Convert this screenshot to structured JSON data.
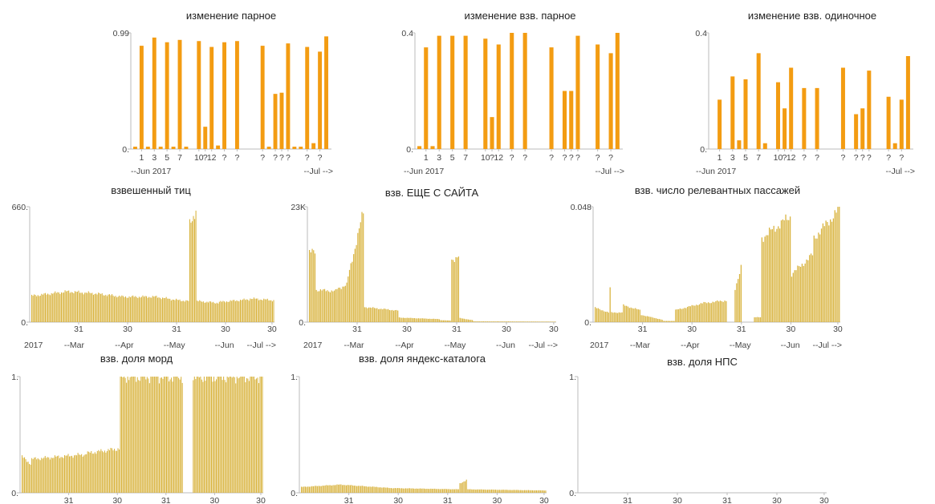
{
  "colors": {
    "orange": "#f39c12",
    "gold": "#d9b440",
    "axis": "#bbbbbb",
    "text": "#222222"
  },
  "chart_data": [
    {
      "type": "bar",
      "title": "изменение парное",
      "ylim": [
        0,
        0.99
      ],
      "ytick_labels": [
        "0.99",
        "0."
      ],
      "xtick_labels": [
        "1",
        "3",
        "5",
        "7",
        "10",
        "?",
        "12",
        "?",
        "?",
        "?",
        "?",
        "?",
        "?",
        "?",
        "?"
      ],
      "range_labels": [
        "--Jun 2017",
        "--Jul -->"
      ],
      "values": [
        0.02,
        0.88,
        0.02,
        0.95,
        0.02,
        0.91,
        0.02,
        0.93,
        0.02,
        0,
        0.92,
        0.19,
        0.87,
        0.03,
        0.91,
        0,
        0.92,
        0,
        0,
        0,
        0.88,
        0.02,
        0.47,
        0.48,
        0.9,
        0.02,
        0.02,
        0.87,
        0.05,
        0.83,
        0.96
      ]
    },
    {
      "type": "bar",
      "title": "изменение взв. парное",
      "ylim": [
        0,
        0.4
      ],
      "ytick_labels": [
        "0.4",
        "0."
      ],
      "xtick_labels": [
        "1",
        "3",
        "5",
        "7",
        "10",
        "?",
        "12",
        "?",
        "?",
        "?",
        "?",
        "?",
        "?",
        "?",
        "?"
      ],
      "range_labels": [
        "--Jun 2017",
        "--Jul -->"
      ],
      "values": [
        0.01,
        0.35,
        0.01,
        0.39,
        0,
        0.39,
        0,
        0.39,
        0,
        0,
        0.38,
        0.11,
        0.36,
        0,
        0.4,
        0,
        0.4,
        0,
        0,
        0,
        0.35,
        0,
        0.2,
        0.2,
        0.39,
        0,
        0,
        0.36,
        0,
        0.33,
        0.4
      ]
    },
    {
      "type": "bar",
      "title": "изменение взв. одиночное",
      "ylim": [
        0,
        0.4
      ],
      "ytick_labels": [
        "0.4",
        "0."
      ],
      "xtick_labels": [
        "1",
        "3",
        "5",
        "7",
        "10",
        "?",
        "12",
        "?",
        "?",
        "?",
        "?",
        "?",
        "?",
        "?",
        "?"
      ],
      "range_labels": [
        "--Jun 2017",
        "--Jul -->"
      ],
      "values": [
        0,
        0.17,
        0,
        0.25,
        0.03,
        0.24,
        0,
        0.33,
        0.02,
        0,
        0.23,
        0.14,
        0.28,
        0,
        0.21,
        0,
        0.21,
        0,
        0,
        0,
        0.28,
        0,
        0.12,
        0.14,
        0.27,
        0,
        0,
        0.18,
        0.02,
        0.17,
        0.32
      ]
    },
    {
      "type": "bar",
      "title": "взвешенный тиц",
      "ylim": [
        0,
        660
      ],
      "ytick_labels": [
        "660.",
        "0."
      ],
      "xtick_labels": [
        "31",
        "30",
        "31",
        "30",
        "30"
      ],
      "range_labels": [
        "2017",
        "--Mar",
        "--Apr",
        "--May",
        "--Jun",
        "--Jul -->"
      ],
      "segments": [
        {
          "start": 150,
          "end": 175,
          "count": 30
        },
        {
          "start": 175,
          "end": 165,
          "count": 20
        },
        {
          "start": 165,
          "end": 145,
          "count": 25
        },
        {
          "start": 145,
          "end": 145,
          "count": 25
        },
        {
          "start": 145,
          "end": 125,
          "count": 20
        },
        {
          "start": 125,
          "end": 120,
          "count": 8
        },
        {
          "start": 560,
          "end": 640,
          "count": 6
        },
        {
          "start": 120,
          "end": 110,
          "count": 18
        },
        {
          "start": 115,
          "end": 130,
          "count": 25
        },
        {
          "start": 135,
          "end": 125,
          "count": 20
        }
      ]
    },
    {
      "type": "bar",
      "title": "взв. ЕЩЕ С САЙТА",
      "ylim": [
        0,
        23000
      ],
      "ytick_labels": [
        "23K",
        "0."
      ],
      "xtick_labels": [
        "31",
        "30",
        "31",
        "30",
        "30"
      ],
      "range_labels": [
        "2017",
        "--Mar",
        "--Apr",
        "--May",
        "--Jun",
        "--Jul -->"
      ],
      "segments": [
        {
          "start": 13800,
          "end": 14200,
          "count": 5
        },
        {
          "start": 6400,
          "end": 6200,
          "count": 15
        },
        {
          "start": 6600,
          "end": 7500,
          "count": 8
        },
        {
          "start": 9000,
          "end": 22000,
          "count": 12
        },
        {
          "start": 3000,
          "end": 2300,
          "count": 25
        },
        {
          "start": 900,
          "end": 600,
          "count": 30
        },
        {
          "start": 400,
          "end": 300,
          "count": 8
        },
        {
          "start": 12500,
          "end": 13000,
          "count": 6
        },
        {
          "start": 800,
          "end": 400,
          "count": 10
        },
        {
          "start": 150,
          "end": 100,
          "count": 60
        }
      ]
    },
    {
      "type": "bar",
      "title": "взв. число релевантных пассажей",
      "ylim": [
        0,
        0.048
      ],
      "ytick_labels": [
        "0.048",
        "0."
      ],
      "xtick_labels": [
        "31",
        "30",
        "31",
        "30",
        "30"
      ],
      "range_labels": [
        "2017",
        "--Mar",
        "--Apr",
        "--May",
        "--Jun",
        "--Jul -->"
      ],
      "segments": [
        {
          "start": 0.006,
          "end": 0.004,
          "count": 10
        },
        {
          "start": 0.014,
          "end": 0.014,
          "count": 1
        },
        {
          "start": 0.004,
          "end": 0.004,
          "count": 8
        },
        {
          "start": 0.007,
          "end": 0.005,
          "count": 12
        },
        {
          "start": 0.003,
          "end": 0.001,
          "count": 15
        },
        {
          "start": 0.0005,
          "end": 0.0005,
          "count": 8
        },
        {
          "start": 0.005,
          "end": 0.008,
          "count": 20
        },
        {
          "start": 0.008,
          "end": 0.009,
          "count": 15
        },
        {
          "start": 0.0,
          "end": 0.0,
          "count": 5
        },
        {
          "start": 0.014,
          "end": 0.023,
          "count": 5
        },
        {
          "start": 0.0,
          "end": 0.0,
          "count": 8
        },
        {
          "start": 0.002,
          "end": 0.002,
          "count": 5
        },
        {
          "start": 0.035,
          "end": 0.044,
          "count": 20
        },
        {
          "start": 0.02,
          "end": 0.028,
          "count": 15
        },
        {
          "start": 0.035,
          "end": 0.047,
          "count": 18
        }
      ]
    },
    {
      "type": "bar",
      "title": "взв. доля морд",
      "ylim": [
        0,
        1
      ],
      "ytick_labels": [
        "1.",
        "0."
      ],
      "xtick_labels": [
        "31",
        "30",
        "31",
        "30",
        "30"
      ],
      "range_labels": [],
      "segments": [
        {
          "start": 0.31,
          "end": 0.25,
          "count": 8
        },
        {
          "start": 0.29,
          "end": 0.33,
          "count": 45
        },
        {
          "start": 0.34,
          "end": 0.38,
          "count": 28
        },
        {
          "start": 1,
          "end": 1,
          "count": 52
        },
        {
          "start": 0,
          "end": 0,
          "count": 8
        },
        {
          "start": 1,
          "end": 1,
          "count": 58
        }
      ]
    },
    {
      "type": "bar",
      "title": "взв. доля яндекс-каталога",
      "ylim": [
        0,
        1
      ],
      "ytick_labels": [
        "1.",
        "0."
      ],
      "xtick_labels": [
        "31",
        "30",
        "31",
        "30",
        "30"
      ],
      "range_labels": [],
      "segments": [
        {
          "start": 0.05,
          "end": 0.07,
          "count": 30
        },
        {
          "start": 0.07,
          "end": 0.04,
          "count": 40
        },
        {
          "start": 0.04,
          "end": 0.03,
          "count": 50
        },
        {
          "start": 0.08,
          "end": 0.11,
          "count": 6
        },
        {
          "start": 0.03,
          "end": 0.02,
          "count": 60
        }
      ]
    },
    {
      "type": "bar",
      "title": "взв. доля НПС",
      "ylim": [
        0,
        1
      ],
      "ytick_labels": [
        "1.",
        "0."
      ],
      "xtick_labels": [
        "31",
        "30",
        "31",
        "30",
        "30"
      ],
      "range_labels": [],
      "segments": []
    }
  ]
}
